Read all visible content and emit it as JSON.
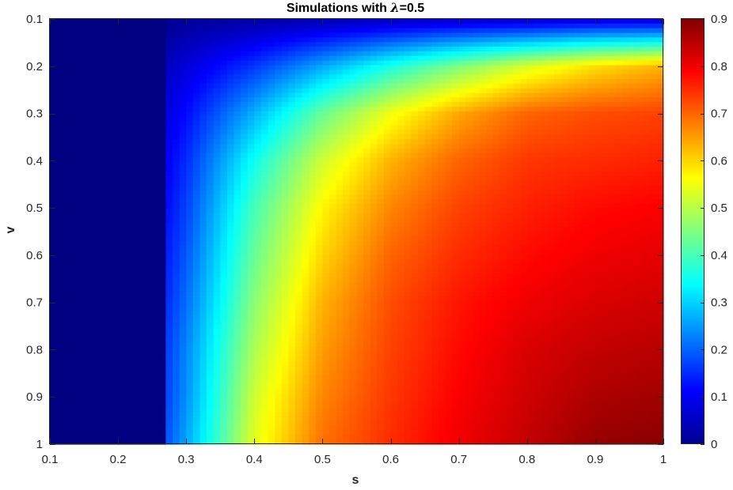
{
  "chart_data": {
    "type": "heatmap",
    "title_prefix": "Simulations with ",
    "title_symbol": "λ",
    "title_suffix": "=0.5",
    "xlabel": "s",
    "ylabel": "v",
    "xlim": [
      0.1,
      1
    ],
    "ylim": [
      0.1,
      1
    ],
    "y_direction": "reverse",
    "x_ticks": [
      "0.1",
      "0.2",
      "0.3",
      "0.4",
      "0.5",
      "0.6",
      "0.7",
      "0.8",
      "0.9",
      "1"
    ],
    "y_ticks": [
      "0.1",
      "0.2",
      "0.3",
      "0.4",
      "0.5",
      "0.6",
      "0.7",
      "0.8",
      "0.9",
      "1"
    ],
    "colormap": "jet",
    "clim": [
      0,
      0.9
    ],
    "colorbar_ticks": [
      "0",
      "0.1",
      "0.2",
      "0.3",
      "0.4",
      "0.5",
      "0.6",
      "0.7",
      "0.8",
      "0.9"
    ],
    "grid": false,
    "zero_region_s_max": 0.27,
    "s_values": [
      0.1,
      0.2,
      0.3,
      0.4,
      0.5,
      0.6,
      0.7,
      0.8,
      0.9,
      1.0
    ],
    "v_values": [
      0.1,
      0.2,
      0.3,
      0.4,
      0.5,
      0.6,
      0.7,
      0.8,
      0.9,
      1.0
    ],
    "values": [
      [
        0,
        0,
        0.02,
        0.03,
        0.04,
        0.05,
        0.06,
        0.06,
        0.07,
        0.07
      ],
      [
        0,
        0,
        0.08,
        0.16,
        0.26,
        0.36,
        0.45,
        0.53,
        0.59,
        0.63
      ],
      [
        0,
        0,
        0.12,
        0.27,
        0.43,
        0.55,
        0.64,
        0.7,
        0.72,
        0.73
      ],
      [
        0,
        0,
        0.15,
        0.35,
        0.52,
        0.63,
        0.7,
        0.74,
        0.75,
        0.76
      ],
      [
        0,
        0,
        0.17,
        0.4,
        0.57,
        0.67,
        0.73,
        0.76,
        0.78,
        0.79
      ],
      [
        0,
        0,
        0.19,
        0.43,
        0.6,
        0.7,
        0.75,
        0.78,
        0.8,
        0.81
      ],
      [
        0,
        0,
        0.21,
        0.46,
        0.63,
        0.72,
        0.77,
        0.8,
        0.82,
        0.83
      ],
      [
        0,
        0,
        0.23,
        0.49,
        0.65,
        0.73,
        0.78,
        0.82,
        0.84,
        0.85
      ],
      [
        0,
        0,
        0.24,
        0.52,
        0.67,
        0.74,
        0.79,
        0.83,
        0.86,
        0.87
      ],
      [
        0,
        0,
        0.26,
        0.54,
        0.69,
        0.75,
        0.8,
        0.84,
        0.88,
        0.89
      ]
    ]
  }
}
